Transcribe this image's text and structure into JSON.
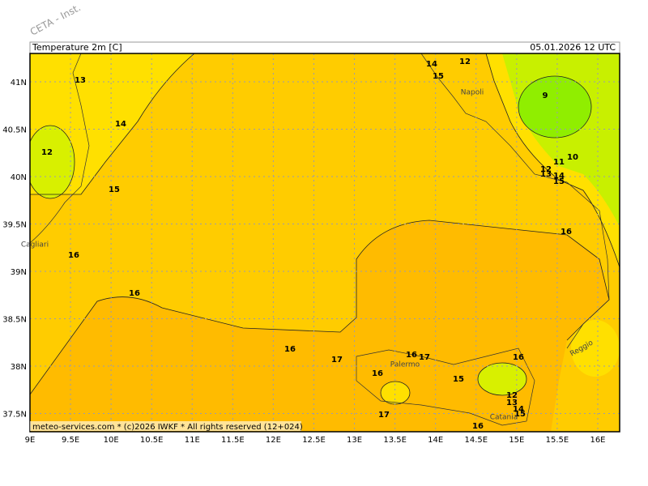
{
  "watermark": "CETA - Inst.",
  "header": {
    "title": "Temperature 2m [C]",
    "date": "05.01.2026 12 UTC"
  },
  "footer": "meteo-services.com * (c)2026 IWKF * All rights reserved (12+024)",
  "lon_labels": [
    "9E",
    "9.5E",
    "10E",
    "10.5E",
    "11E",
    "11.5E",
    "12E",
    "12.5E",
    "13E",
    "13.5E",
    "14E",
    "14.5E",
    "15E",
    "15.5E",
    "16E"
  ],
  "lat_labels": [
    "41N",
    "40.5N",
    "40N",
    "39.5N",
    "39N",
    "38.5N",
    "38N",
    "37.5N"
  ],
  "contour_labels": [
    "13",
    "14",
    "12",
    "15",
    "9",
    "14",
    "12",
    "10",
    "11",
    "12",
    "13",
    "14",
    "15",
    "15",
    "16",
    "16",
    "16",
    "16",
    "17",
    "16",
    "17",
    "16",
    "16",
    "15",
    "12",
    "13",
    "14",
    "15",
    "17",
    "16"
  ],
  "cities": [
    "Napoli",
    "Cagliari",
    "Palermo",
    "Catania",
    "Reggio"
  ]
}
